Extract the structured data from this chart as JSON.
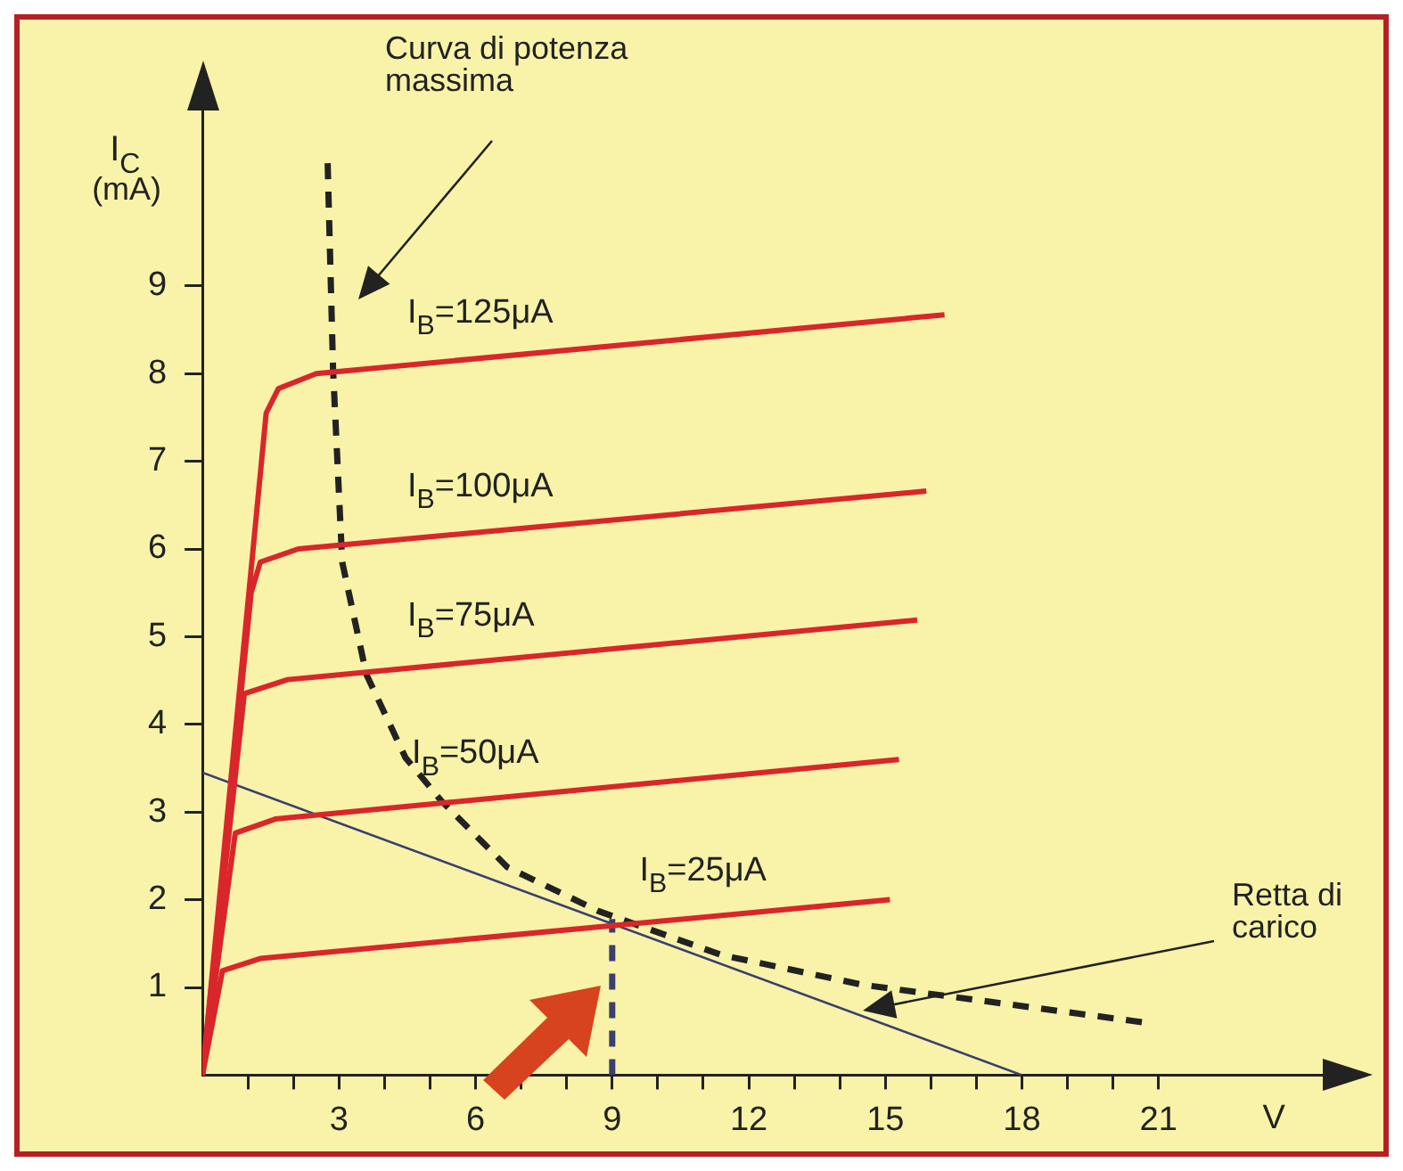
{
  "chart_data": {
    "type": "line",
    "xlabel": "V",
    "ylabel": "I$_{C}$ (mA)",
    "xlim": [
      0,
      25
    ],
    "ylim": [
      0,
      11
    ],
    "xticks": [
      {
        "value": 1,
        "label": null
      },
      {
        "value": 2,
        "label": null
      },
      3,
      {
        "value": 4,
        "label": null
      },
      {
        "value": 5,
        "label": null
      },
      6,
      {
        "value": 7,
        "label": null
      },
      {
        "value": 8,
        "label": null
      },
      9,
      {
        "value": 10,
        "label": null
      },
      {
        "value": 11,
        "label": null
      },
      12,
      {
        "value": 13,
        "label": null
      },
      {
        "value": 14,
        "label": null
      },
      15,
      {
        "value": 16,
        "label": null
      },
      {
        "value": 17,
        "label": null
      },
      18,
      {
        "value": 19,
        "label": null
      },
      {
        "value": 20,
        "label": null
      },
      21
    ],
    "yticks": [
      1,
      2,
      3,
      4,
      5,
      6,
      7,
      8,
      9
    ],
    "grid": false,
    "legend": false,
    "marker": "none",
    "line_style": "solid",
    "series": [
      {
        "name": "I$_{B}$=125μA",
        "color": "#d9262b",
        "x": [
          0,
          1.4,
          1.67,
          2.5,
          16.3
        ],
        "values": [
          0,
          7.55,
          7.83,
          8.0,
          8.67
        ]
      },
      {
        "name": "I$_{B}$=100μA",
        "color": "#d9262b",
        "x": [
          0,
          1.07,
          1.27,
          2.1,
          15.9
        ],
        "values": [
          0,
          5.5,
          5.85,
          6.0,
          6.66
        ]
      },
      {
        "name": "I$_{B}$=75μA",
        "color": "#d9262b",
        "x": [
          0,
          0.92,
          1.87,
          15.7
        ],
        "values": [
          0,
          4.35,
          4.51,
          5.19
        ]
      },
      {
        "name": "I$_{B}$=50μA",
        "color": "#d9262b",
        "x": [
          0,
          0.72,
          1.6,
          15.3
        ],
        "values": [
          0,
          2.76,
          2.92,
          3.6
        ]
      },
      {
        "name": "I$_{B}$=25μA",
        "color": "#d9262b",
        "x": [
          0,
          0.44,
          1.27,
          15.1
        ],
        "values": [
          0,
          1.19,
          1.33,
          2.0
        ]
      },
      {
        "color": "#222222",
        "line_style": "dashed",
        "x": [
          2.75,
          2.87,
          3.07,
          3.6,
          4.46,
          5.26,
          6.7,
          8.7,
          11.4,
          14.5,
          20.7
        ],
        "values": [
          10.4,
          8.03,
          5.85,
          4.57,
          3.62,
          3.12,
          2.37,
          1.87,
          1.37,
          1.03,
          0.6
        ]
      },
      {
        "color": "#3a3f6e",
        "x": [
          0,
          18
        ],
        "values": [
          3.45,
          0
        ]
      },
      {
        "color": "#3a3f6e",
        "line_style": "dashed",
        "x": [
          9,
          9
        ],
        "values": [
          0,
          1.78
        ]
      }
    ],
    "annotations": [
      "Curva di potenza massima",
      "Retta di carico"
    ]
  }
}
